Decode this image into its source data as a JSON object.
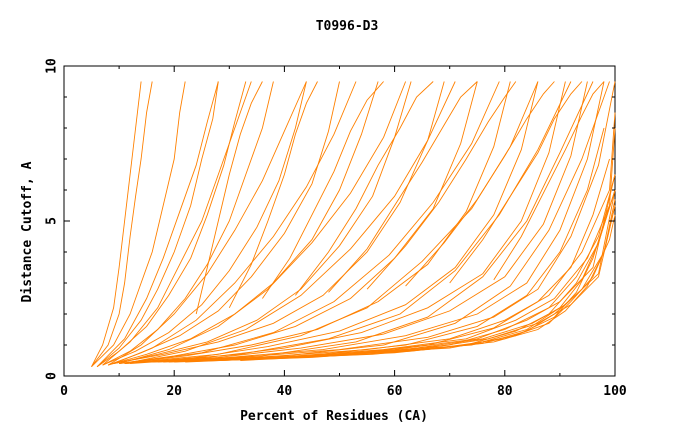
{
  "chart_data": {
    "type": "line",
    "title": "T0996-D3",
    "xlabel": "Percent of Residues (CA)",
    "ylabel": "Distance Cutoff, A",
    "xlim": [
      0,
      100
    ],
    "ylim": [
      0,
      10
    ],
    "x_ticks": [
      "0",
      "20",
      "40",
      "60",
      "80",
      "100"
    ],
    "y_ticks": [
      "0",
      "5",
      "10"
    ],
    "grid": false,
    "legend": "none",
    "line_color": "#ff8000",
    "series": [
      {
        "x": [
          5,
          8,
          10,
          11,
          12,
          13,
          14,
          15,
          16
        ],
        "y": [
          0.3,
          1.0,
          2.0,
          3.0,
          4.5,
          5.8,
          7.0,
          8.5,
          9.5
        ]
      },
      {
        "x": [
          5,
          9,
          12,
          14,
          16,
          18,
          20,
          21,
          22
        ],
        "y": [
          0.3,
          1.0,
          2.0,
          3.0,
          4.0,
          5.5,
          7.0,
          8.5,
          9.5
        ]
      },
      {
        "x": [
          6,
          10,
          14,
          17,
          20,
          23,
          25,
          27,
          28
        ],
        "y": [
          0.3,
          0.9,
          1.8,
          2.8,
          4.0,
          5.5,
          7.0,
          8.3,
          9.5
        ]
      },
      {
        "x": [
          6,
          10,
          15,
          19,
          23,
          26,
          29,
          31,
          33
        ],
        "y": [
          0.3,
          0.8,
          1.6,
          2.6,
          3.8,
          5.2,
          6.8,
          8.2,
          9.5
        ]
      },
      {
        "x": [
          7,
          12,
          17,
          22,
          26,
          30,
          33,
          36,
          38
        ],
        "y": [
          0.35,
          0.8,
          1.5,
          2.5,
          3.6,
          5.0,
          6.5,
          8.0,
          9.5
        ]
      },
      {
        "x": [
          7,
          13,
          19,
          25,
          30,
          35,
          39,
          42,
          44
        ],
        "y": [
          0.35,
          0.8,
          1.4,
          2.3,
          3.4,
          4.8,
          6.3,
          8.0,
          9.5
        ]
      },
      {
        "x": [
          8,
          14,
          21,
          28,
          34,
          40,
          45,
          48,
          50
        ],
        "y": [
          0.35,
          0.75,
          1.3,
          2.1,
          3.2,
          4.6,
          6.2,
          7.9,
          9.5
        ]
      },
      {
        "x": [
          8,
          15,
          23,
          31,
          38,
          45,
          50,
          54,
          57
        ],
        "y": [
          0.35,
          0.7,
          1.2,
          2.0,
          3.0,
          4.4,
          6.0,
          7.8,
          9.5
        ]
      },
      {
        "x": [
          9,
          17,
          26,
          35,
          43,
          50,
          56,
          60,
          63
        ],
        "y": [
          0.4,
          0.7,
          1.1,
          1.8,
          2.8,
          4.2,
          5.8,
          7.7,
          9.5
        ]
      },
      {
        "x": [
          9,
          18,
          28,
          38,
          47,
          55,
          61,
          66,
          69
        ],
        "y": [
          0.4,
          0.7,
          1.1,
          1.7,
          2.6,
          4.0,
          5.6,
          7.6,
          9.5
        ]
      },
      {
        "x": [
          10,
          20,
          31,
          42,
          52,
          60,
          67,
          72,
          75
        ],
        "y": [
          0.4,
          0.65,
          1.0,
          1.6,
          2.5,
          3.8,
          5.4,
          7.5,
          9.5
        ]
      },
      {
        "x": [
          10,
          22,
          34,
          46,
          57,
          66,
          73,
          78,
          81
        ],
        "y": [
          0.4,
          0.65,
          1.0,
          1.5,
          2.4,
          3.6,
          5.3,
          7.4,
          9.5
        ]
      },
      {
        "x": [
          11,
          24,
          37,
          50,
          62,
          71,
          78,
          83,
          86
        ],
        "y": [
          0.4,
          0.6,
          0.95,
          1.45,
          2.3,
          3.5,
          5.2,
          7.3,
          9.5
        ]
      },
      {
        "x": [
          11,
          26,
          40,
          54,
          66,
          76,
          83,
          88,
          91
        ],
        "y": [
          0.4,
          0.6,
          0.9,
          1.4,
          2.2,
          3.3,
          5.0,
          7.2,
          9.5
        ]
      },
      {
        "x": [
          12,
          28,
          43,
          58,
          70,
          80,
          87,
          92,
          95
        ],
        "y": [
          0.4,
          0.6,
          0.9,
          1.35,
          2.1,
          3.2,
          4.9,
          7.1,
          9.5
        ]
      },
      {
        "x": [
          12,
          30,
          47,
          62,
          75,
          84,
          90,
          95,
          98
        ],
        "y": [
          0.45,
          0.6,
          0.85,
          1.3,
          2.0,
          3.0,
          4.7,
          7.0,
          9.5
        ]
      },
      {
        "x": [
          13,
          32,
          50,
          66,
          78,
          86,
          92,
          97,
          100
        ],
        "y": [
          0.45,
          0.6,
          0.85,
          1.25,
          1.9,
          2.8,
          4.5,
          6.8,
          9.5
        ]
      },
      {
        "x": [
          14,
          35,
          55,
          70,
          80,
          88,
          94,
          99,
          100
        ],
        "y": [
          0.45,
          0.6,
          0.85,
          1.2,
          1.8,
          2.6,
          4.0,
          6.0,
          8.5
        ]
      },
      {
        "x": [
          15,
          38,
          58,
          73,
          82,
          89,
          95,
          99,
          100
        ],
        "y": [
          0.45,
          0.6,
          0.85,
          1.2,
          1.8,
          2.5,
          3.8,
          5.5,
          8.0
        ]
      },
      {
        "x": [
          16,
          40,
          60,
          75,
          84,
          90,
          96,
          100
        ],
        "y": [
          0.45,
          0.6,
          0.85,
          1.2,
          1.8,
          2.4,
          3.5,
          6.5
        ]
      },
      {
        "x": [
          18,
          42,
          62,
          76,
          85,
          91,
          97,
          100
        ],
        "y": [
          0.45,
          0.6,
          0.85,
          1.2,
          1.7,
          2.3,
          3.3,
          6.0
        ]
      },
      {
        "x": [
          20,
          45,
          64,
          77,
          86,
          92,
          97,
          100
        ],
        "y": [
          0.45,
          0.6,
          0.85,
          1.2,
          1.7,
          2.3,
          3.2,
          5.5
        ]
      },
      {
        "x": [
          6,
          11,
          15,
          18,
          21,
          24,
          26,
          28
        ],
        "y": [
          0.3,
          1.2,
          2.5,
          3.8,
          5.3,
          6.8,
          8.2,
          9.5
        ]
      },
      {
        "x": [
          7,
          12,
          17,
          21,
          25,
          28,
          31,
          34
        ],
        "y": [
          0.35,
          1.1,
          2.2,
          3.6,
          5.0,
          6.5,
          8.0,
          9.5
        ]
      },
      {
        "x": [
          8,
          14,
          20,
          26,
          31,
          36,
          40,
          44
        ],
        "y": [
          0.35,
          1.0,
          2.0,
          3.3,
          4.7,
          6.3,
          7.9,
          9.5
        ]
      },
      {
        "x": [
          9,
          16,
          24,
          31,
          38,
          44,
          49,
          53
        ],
        "y": [
          0.4,
          0.9,
          1.8,
          3.0,
          4.5,
          6.1,
          7.8,
          9.5
        ]
      },
      {
        "x": [
          10,
          19,
          28,
          37,
          45,
          52,
          58,
          62
        ],
        "y": [
          0.4,
          0.85,
          1.6,
          2.8,
          4.3,
          5.9,
          7.7,
          9.5
        ]
      },
      {
        "x": [
          11,
          22,
          33,
          43,
          52,
          60,
          66,
          71
        ],
        "y": [
          0.4,
          0.8,
          1.5,
          2.6,
          4.1,
          5.8,
          7.6,
          9.5
        ]
      },
      {
        "x": [
          12,
          25,
          38,
          49,
          59,
          67,
          74,
          79
        ],
        "y": [
          0.45,
          0.75,
          1.4,
          2.4,
          3.9,
          5.6,
          7.5,
          9.5
        ]
      },
      {
        "x": [
          13,
          28,
          43,
          55,
          65,
          74,
          81,
          86
        ],
        "y": [
          0.45,
          0.7,
          1.3,
          2.2,
          3.7,
          5.4,
          7.4,
          9.5
        ]
      },
      {
        "x": [
          14,
          32,
          48,
          61,
          71,
          79,
          86,
          92
        ],
        "y": [
          0.45,
          0.7,
          1.2,
          2.0,
          3.4,
          5.2,
          7.3,
          9.5
        ]
      },
      {
        "x": [
          15,
          36,
          53,
          66,
          76,
          84,
          90,
          96
        ],
        "y": [
          0.45,
          0.65,
          1.1,
          1.9,
          3.2,
          5.0,
          7.2,
          9.5
        ]
      },
      {
        "x": [
          17,
          40,
          58,
          71,
          81,
          88,
          94,
          99
        ],
        "y": [
          0.45,
          0.65,
          1.0,
          1.7,
          2.9,
          4.7,
          7.0,
          9.5
        ]
      },
      {
        "x": [
          19,
          44,
          62,
          75,
          84,
          90,
          95,
          98
        ],
        "y": [
          0.45,
          0.65,
          1.0,
          1.6,
          2.6,
          4.0,
          6.0,
          8.0
        ]
      },
      {
        "x": [
          22,
          48,
          66,
          78,
          86,
          92,
          96,
          99
        ],
        "y": [
          0.45,
          0.65,
          1.0,
          1.55,
          2.4,
          3.5,
          5.2,
          7.0
        ]
      },
      {
        "x": [
          25,
          52,
          70,
          80,
          88,
          93,
          97,
          100
        ],
        "y": [
          0.5,
          0.7,
          1.0,
          1.5,
          2.2,
          3.2,
          4.5,
          6.5
        ]
      },
      {
        "x": [
          28,
          56,
          73,
          82,
          88,
          93,
          97,
          100
        ],
        "y": [
          0.5,
          0.7,
          1.0,
          1.45,
          2.0,
          3.0,
          4.3,
          6.0
        ]
      },
      {
        "x": [
          32,
          60,
          76,
          84,
          89,
          94,
          98,
          100
        ],
        "y": [
          0.5,
          0.75,
          1.05,
          1.45,
          2.0,
          2.8,
          4.0,
          5.7
        ]
      },
      {
        "x": [
          36,
          63,
          78,
          86,
          91,
          95,
          98,
          100
        ],
        "y": [
          0.55,
          0.8,
          1.1,
          1.5,
          2.1,
          2.9,
          4.0,
          5.5
        ]
      },
      {
        "x": [
          40,
          66,
          80,
          88,
          92,
          96,
          99,
          100
        ],
        "y": [
          0.6,
          0.85,
          1.2,
          1.7,
          2.4,
          3.2,
          4.4,
          5.2
        ]
      },
      {
        "x": [
          45,
          70,
          82,
          89,
          93,
          96,
          99
        ],
        "y": [
          0.65,
          0.9,
          1.3,
          1.9,
          2.7,
          3.8,
          5.5
        ]
      },
      {
        "x": [
          50,
          74,
          84,
          90,
          94,
          97,
          100
        ],
        "y": [
          0.7,
          1.0,
          1.5,
          2.2,
          3.1,
          4.3,
          6.0
        ]
      },
      {
        "x": [
          5,
          7,
          9,
          10,
          11,
          12,
          13,
          14
        ],
        "y": [
          0.3,
          1.0,
          2.2,
          3.5,
          5.0,
          6.5,
          8.0,
          9.5
        ]
      },
      {
        "x": [
          24,
          26,
          28,
          30,
          32,
          34,
          36
        ],
        "y": [
          2.0,
          3.5,
          5.0,
          6.5,
          7.8,
          8.8,
          9.5
        ]
      },
      {
        "x": [
          30,
          34,
          37,
          40,
          42,
          44,
          46
        ],
        "y": [
          2.2,
          3.6,
          5.0,
          6.5,
          7.8,
          8.8,
          9.5
        ]
      },
      {
        "x": [
          36,
          41,
          45,
          49,
          52,
          55,
          58
        ],
        "y": [
          2.5,
          3.8,
          5.2,
          6.6,
          7.9,
          8.9,
          9.5
        ]
      },
      {
        "x": [
          42,
          48,
          53,
          57,
          61,
          64,
          67
        ],
        "y": [
          2.6,
          4.0,
          5.4,
          6.8,
          8.0,
          9.0,
          9.5
        ]
      },
      {
        "x": [
          48,
          55,
          60,
          65,
          69,
          72,
          75
        ],
        "y": [
          2.7,
          4.1,
          5.5,
          6.9,
          8.1,
          9.0,
          9.5
        ]
      },
      {
        "x": [
          55,
          62,
          68,
          73,
          77,
          80,
          82
        ],
        "y": [
          2.8,
          4.2,
          5.6,
          7.0,
          8.2,
          9.0,
          9.5
        ]
      },
      {
        "x": [
          62,
          69,
          75,
          80,
          84,
          87,
          89
        ],
        "y": [
          2.9,
          4.3,
          5.7,
          7.1,
          8.3,
          9.1,
          9.5
        ]
      },
      {
        "x": [
          70,
          76,
          81,
          86,
          89,
          92,
          94
        ],
        "y": [
          3.0,
          4.4,
          5.8,
          7.2,
          8.3,
          9.1,
          9.5
        ]
      },
      {
        "x": [
          78,
          83,
          87,
          91,
          94,
          96,
          98
        ],
        "y": [
          3.1,
          4.5,
          5.9,
          7.3,
          8.4,
          9.1,
          9.5
        ]
      }
    ]
  }
}
